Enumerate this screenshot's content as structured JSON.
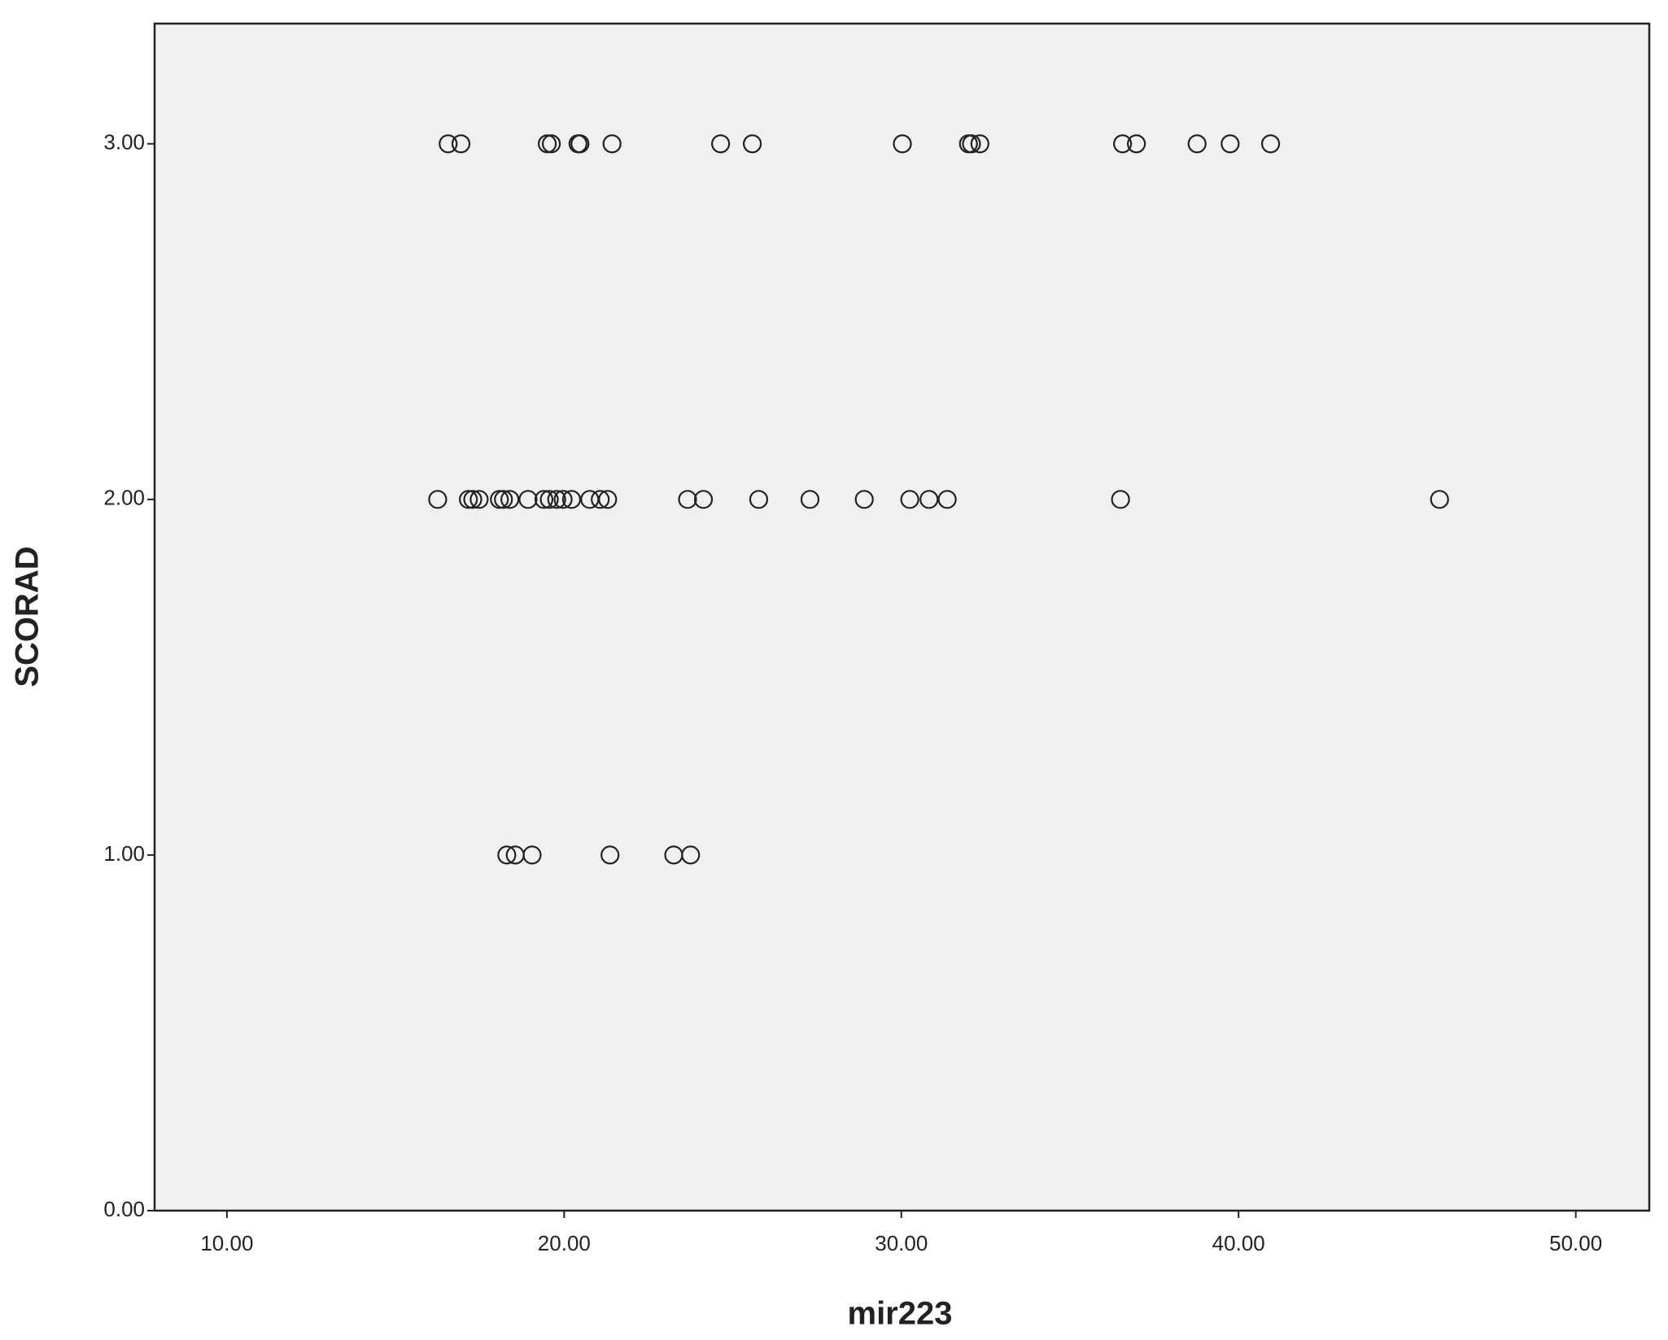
{
  "chart_data": {
    "type": "scatter",
    "xlabel": "mir223",
    "ylabel": "SCORAD",
    "xlim": [
      7.855,
      52.18
    ],
    "ylim": [
      0,
      3.338
    ],
    "xticks": [
      {
        "value": 10,
        "label": "10.00"
      },
      {
        "value": 20,
        "label": "20.00"
      },
      {
        "value": 30,
        "label": "30.00"
      },
      {
        "value": 40,
        "label": "40.00"
      },
      {
        "value": 50,
        "label": "50.00"
      }
    ],
    "yticks": [
      {
        "value": 0,
        "label": "0.00"
      },
      {
        "value": 1,
        "label": "1.00"
      },
      {
        "value": 2,
        "label": "2.00"
      },
      {
        "value": 3,
        "label": "3.00"
      }
    ],
    "background": "#f0f0f0",
    "color": "#222222",
    "x": [
      16.56,
      16.94,
      19.5,
      19.62,
      20.41,
      20.47,
      21.42,
      24.64,
      25.58,
      30.03,
      31.99,
      32.08,
      32.33,
      36.56,
      36.97,
      38.77,
      39.75,
      40.95,
      16.25,
      17.16,
      17.29,
      17.48,
      18.08,
      18.2,
      18.39,
      18.93,
      19.4,
      19.56,
      19.78,
      19.97,
      20.22,
      20.76,
      21.07,
      21.29,
      23.66,
      24.13,
      25.77,
      27.29,
      28.9,
      30.25,
      30.82,
      31.36,
      36.5,
      45.96,
      18.3,
      18.55,
      19.05,
      21.36,
      23.25,
      23.75
    ],
    "y": [
      3,
      3,
      3,
      3,
      3,
      3,
      3,
      3,
      3,
      3,
      3,
      3,
      3,
      3,
      3,
      3,
      3,
      3,
      2,
      2,
      2,
      2,
      2,
      2,
      2,
      2,
      2,
      2,
      2,
      2,
      2,
      2,
      2,
      2,
      2,
      2,
      2,
      2,
      2,
      2,
      2,
      2,
      2,
      2,
      1,
      1,
      1,
      1,
      1,
      1
    ]
  }
}
